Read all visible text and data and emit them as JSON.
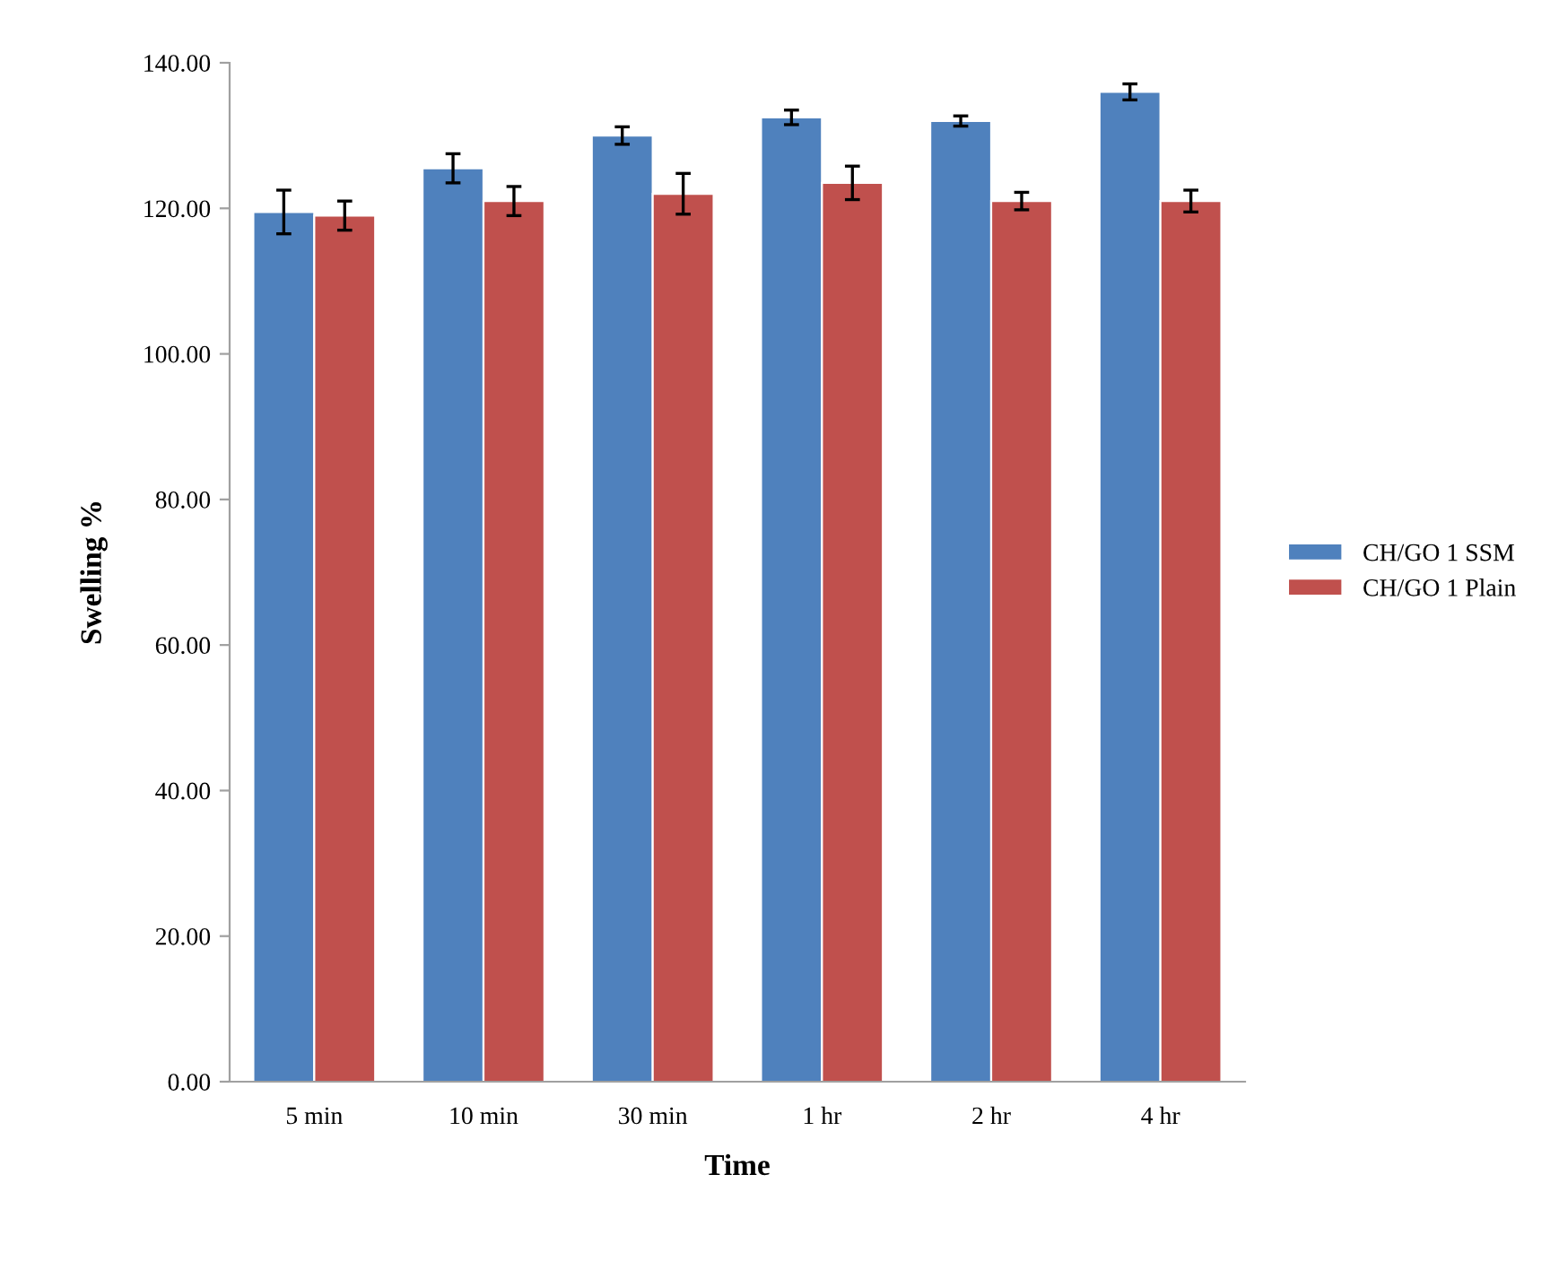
{
  "chart_data": {
    "type": "bar",
    "xlabel": "Time",
    "ylabel": "Swelling %",
    "categories": [
      "5 min",
      "10 min",
      "30 min",
      "1 hr",
      "2 hr",
      "4 hr"
    ],
    "series": [
      {
        "name": "CH/GO 1 SSM",
        "color": "#4f81bd",
        "values": [
          119.5,
          125.5,
          130,
          132.5,
          132,
          136
        ],
        "errors": [
          3,
          2,
          1.2,
          1,
          0.7,
          1.1
        ]
      },
      {
        "name": "CH/GO 1 Plain",
        "color": "#c0504d",
        "values": [
          119,
          121,
          122,
          123.5,
          121,
          121
        ],
        "errors": [
          2,
          2,
          2.8,
          2.3,
          1.2,
          1.5
        ]
      }
    ],
    "ylim": [
      0,
      140
    ],
    "yticks": [
      {
        "value": 0,
        "label": "0.00"
      },
      {
        "value": 20,
        "label": "20.00"
      },
      {
        "value": 40,
        "label": "40.00"
      },
      {
        "value": 60,
        "label": "60.00"
      },
      {
        "value": 80,
        "label": "80.00"
      },
      {
        "value": 100,
        "label": "100.00"
      },
      {
        "value": 120,
        "label": "120.00"
      },
      {
        "value": 140,
        "label": "140.00"
      }
    ],
    "grid": false,
    "legend": "right"
  }
}
